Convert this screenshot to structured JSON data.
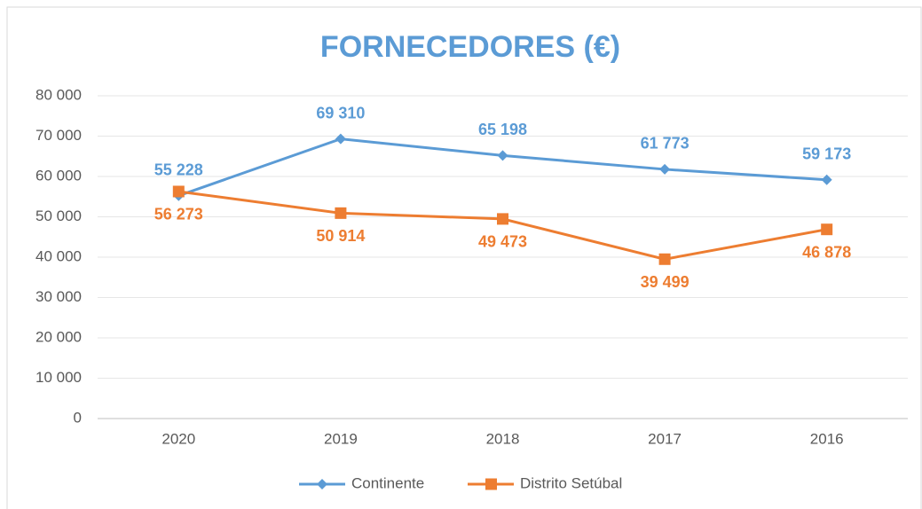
{
  "chart_data": {
    "type": "line",
    "title": "FORNECEDORES (€)",
    "categories": [
      "2020",
      "2019",
      "2018",
      "2017",
      "2016"
    ],
    "series": [
      {
        "name": "Continente",
        "color": "#5b9bd5",
        "values": [
          55228,
          69310,
          65198,
          61773,
          59173
        ],
        "value_labels": [
          "55 228",
          "69 310",
          "65 198",
          "61 773",
          "59 173"
        ]
      },
      {
        "name": "Distrito Setúbal",
        "color": "#ed7d31",
        "values": [
          56273,
          50914,
          49473,
          39499,
          46878
        ],
        "value_labels": [
          "56 273",
          "50 914",
          "49 473",
          "39 499",
          "46 878"
        ]
      }
    ],
    "ylim": [
      0,
      80000
    ],
    "yticks": [
      {
        "value": 0,
        "label": "0"
      },
      {
        "value": 10000,
        "label": "10 000"
      },
      {
        "value": 20000,
        "label": "20 000"
      },
      {
        "value": 30000,
        "label": "30 000"
      },
      {
        "value": 40000,
        "label": "40 000"
      },
      {
        "value": 50000,
        "label": "50 000"
      },
      {
        "value": 60000,
        "label": "60 000"
      },
      {
        "value": 70000,
        "label": "70 000"
      },
      {
        "value": 80000,
        "label": "80 000"
      }
    ],
    "grid": true,
    "legend": "bottom"
  }
}
